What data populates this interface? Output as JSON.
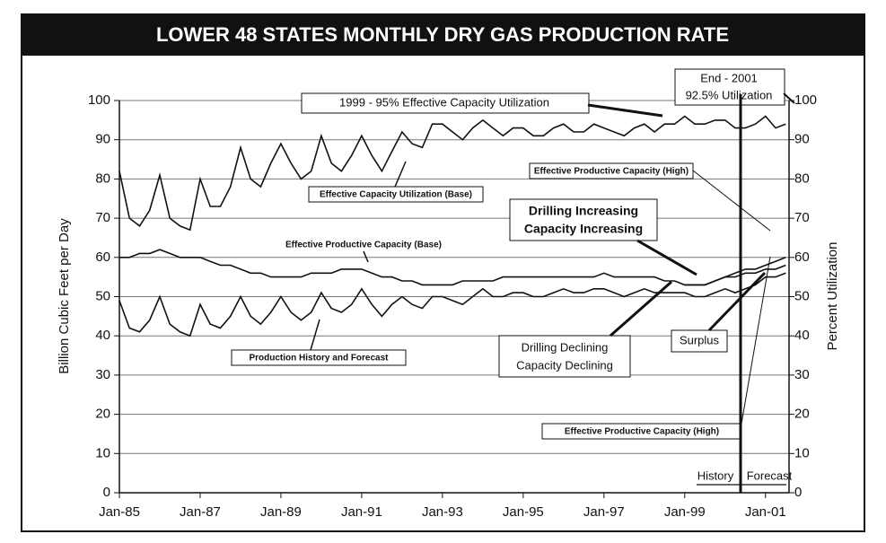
{
  "chart_data": {
    "type": "line",
    "title": "LOWER 48 STATES MONTHLY DRY GAS PRODUCTION RATE",
    "y_label": "Billion Cubic Feet per Day",
    "y2_label": "Percent Utilization",
    "x": [
      "Jan-85",
      "Apr-85",
      "Jul-85",
      "Oct-85",
      "Jan-86",
      "Apr-86",
      "Jul-86",
      "Oct-86",
      "Jan-87",
      "Apr-87",
      "Jul-87",
      "Oct-87",
      "Jan-88",
      "Apr-88",
      "Jul-88",
      "Oct-88",
      "Jan-89",
      "Apr-89",
      "Jul-89",
      "Oct-89",
      "Jan-90",
      "Apr-90",
      "Jul-90",
      "Oct-90",
      "Jan-91",
      "Apr-91",
      "Jul-91",
      "Oct-91",
      "Jan-92",
      "Apr-92",
      "Jul-92",
      "Oct-92",
      "Jan-93",
      "Apr-93",
      "Jul-93",
      "Oct-93",
      "Jan-94",
      "Apr-94",
      "Jul-94",
      "Oct-94",
      "Jan-95",
      "Apr-95",
      "Jul-95",
      "Oct-95",
      "Jan-96",
      "Apr-96",
      "Jul-96",
      "Oct-96",
      "Jan-97",
      "Apr-97",
      "Jul-97",
      "Oct-97",
      "Jan-98",
      "Apr-98",
      "Jul-98",
      "Oct-98",
      "Jan-99",
      "Apr-99",
      "Jul-99",
      "Oct-99",
      "Jan-00",
      "Apr-00",
      "Jul-00",
      "Oct-00",
      "Jan-01",
      "Apr-01",
      "Jul-01"
    ],
    "xlim": [
      "Jan-85",
      "Aug-01"
    ],
    "xticks": [
      "Jan-85",
      "Jan-87",
      "Jan-89",
      "Jan-91",
      "Jan-93",
      "Jan-95",
      "Jan-97",
      "Jan-99",
      "Jan-01"
    ],
    "ylim": [
      0,
      100
    ],
    "yticks": [
      0,
      10,
      20,
      30,
      40,
      50,
      60,
      70,
      80,
      90,
      100
    ],
    "y2lim": [
      0,
      100
    ],
    "y2ticks": [
      0,
      10,
      20,
      30,
      40,
      50,
      60,
      70,
      80,
      90,
      100
    ],
    "grid": true,
    "series": [
      {
        "name": "Effective Capacity Utilization (Base)",
        "color": "#111111",
        "axis": "y2",
        "values": [
          82,
          70,
          68,
          72,
          81,
          70,
          68,
          67,
          80,
          73,
          73,
          78,
          88,
          80,
          78,
          84,
          89,
          84,
          80,
          82,
          91,
          84,
          82,
          86,
          91,
          86,
          82,
          87,
          92,
          89,
          88,
          94,
          94,
          92,
          90,
          93,
          95,
          93,
          91,
          93,
          93,
          91,
          91,
          93,
          94,
          92,
          92,
          94,
          93,
          92,
          91,
          93,
          94,
          92,
          94,
          94,
          96,
          94,
          94,
          95,
          95,
          93,
          93,
          94,
          96,
          93,
          94
        ]
      },
      {
        "name": "Effective Productive Capacity (Base)",
        "color": "#111111",
        "values": [
          60,
          60,
          61,
          61,
          62,
          61,
          60,
          60,
          60,
          59,
          58,
          58,
          57,
          56,
          56,
          55,
          55,
          55,
          55,
          56,
          56,
          56,
          57,
          57,
          57,
          56,
          55,
          55,
          54,
          54,
          53,
          53,
          53,
          53,
          54,
          54,
          54,
          54,
          55,
          55,
          55,
          55,
          55,
          55,
          55,
          55,
          55,
          55,
          56,
          55,
          55,
          55,
          55,
          55,
          54,
          54,
          53,
          53,
          53,
          54,
          55,
          55,
          56,
          56,
          57,
          57,
          58
        ]
      },
      {
        "name": "Effective Productive Capacity (High)",
        "color": "#111111",
        "values": [
          null,
          null,
          null,
          null,
          null,
          null,
          null,
          null,
          null,
          null,
          null,
          null,
          null,
          null,
          null,
          null,
          null,
          null,
          null,
          null,
          null,
          null,
          null,
          null,
          null,
          null,
          null,
          null,
          null,
          null,
          null,
          null,
          null,
          null,
          null,
          null,
          null,
          null,
          null,
          null,
          null,
          null,
          null,
          null,
          null,
          null,
          null,
          null,
          null,
          null,
          null,
          null,
          null,
          null,
          null,
          null,
          53,
          53,
          53,
          54,
          55,
          56,
          57,
          57,
          58,
          59,
          60
        ]
      },
      {
        "name": "Production History and Forecast",
        "color": "#111111",
        "values": [
          49,
          42,
          41,
          44,
          50,
          43,
          41,
          40,
          48,
          43,
          42,
          45,
          50,
          45,
          43,
          46,
          50,
          46,
          44,
          46,
          51,
          47,
          46,
          48,
          52,
          48,
          45,
          48,
          50,
          48,
          47,
          50,
          50,
          49,
          48,
          50,
          52,
          50,
          50,
          51,
          51,
          50,
          50,
          51,
          52,
          51,
          51,
          52,
          52,
          51,
          50,
          51,
          52,
          51,
          51,
          51,
          51,
          50,
          50,
          51,
          52,
          51,
          52,
          53,
          55,
          55,
          56
        ]
      }
    ],
    "annotations": [
      "1999 - 95% Effective Capacity Utilization",
      "End - 2001",
      "92.5% Utilization",
      "Effective Capacity Utilization (Base)",
      "Effective Productive Capacity (High)",
      "Drilling Increasing",
      "Capacity Increasing",
      "Effective Productive Capacity (Base)",
      "Production History and Forecast",
      "Drilling Declining",
      "Capacity Declining",
      "Surplus",
      "Effective Productive Capacity (High)",
      "History",
      "Forecast"
    ]
  }
}
